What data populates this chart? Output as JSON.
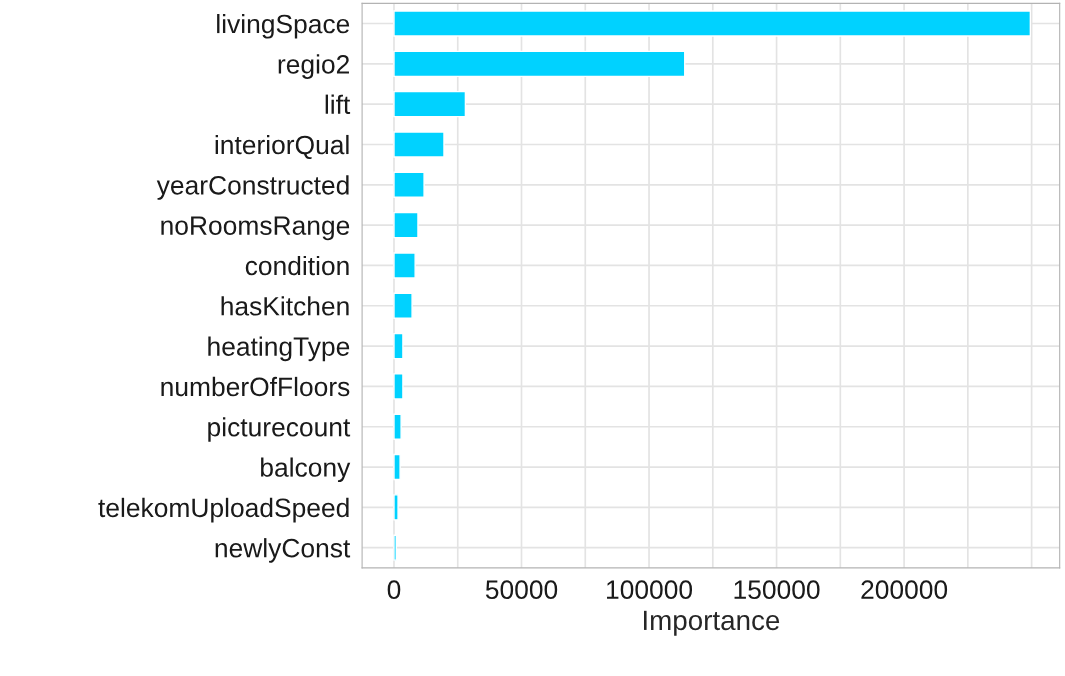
{
  "chart_data": {
    "type": "bar",
    "orientation": "horizontal",
    "xlabel": "Importance",
    "categories": [
      "livingSpace",
      "regio2",
      "lift",
      "interiorQual",
      "yearConstructed",
      "noRoomsRange",
      "condition",
      "hasKitchen",
      "heatingType",
      "numberOfFloors",
      "picturecount",
      "balcony",
      "telekomUploadSpeed",
      "newlyConst"
    ],
    "values": [
      249500,
      114000,
      28000,
      19600,
      11800,
      9400,
      8300,
      7100,
      3500,
      3500,
      2800,
      2400,
      1600,
      900
    ],
    "color": "#00d2ff",
    "xlim": [
      -12500,
      261000
    ],
    "xticks": [
      0,
      {
        "value": 25000,
        "label": null
      },
      50000,
      {
        "value": 75000,
        "label": null
      },
      100000,
      {
        "value": 125000,
        "label": null
      },
      150000,
      {
        "value": 175000,
        "label": null
      },
      200000,
      {
        "value": 225000,
        "label": null
      },
      {
        "value": 250000,
        "label": null
      }
    ],
    "grid": true
  }
}
